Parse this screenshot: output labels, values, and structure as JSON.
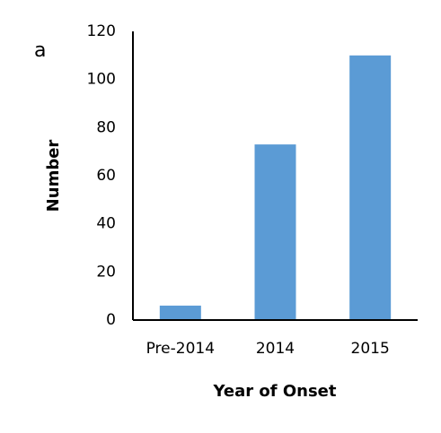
{
  "chart_data": {
    "type": "bar",
    "panel_label": "a",
    "xlabel": "Year of Onset",
    "ylabel": "Number",
    "categories": [
      "Pre-2014",
      "2014",
      "2015"
    ],
    "values": [
      6,
      73,
      110
    ],
    "color": "#5b9bd5",
    "ylim": [
      0,
      120
    ],
    "yticks": [
      0,
      20,
      40,
      60,
      80,
      100,
      120
    ],
    "grid": false
  }
}
